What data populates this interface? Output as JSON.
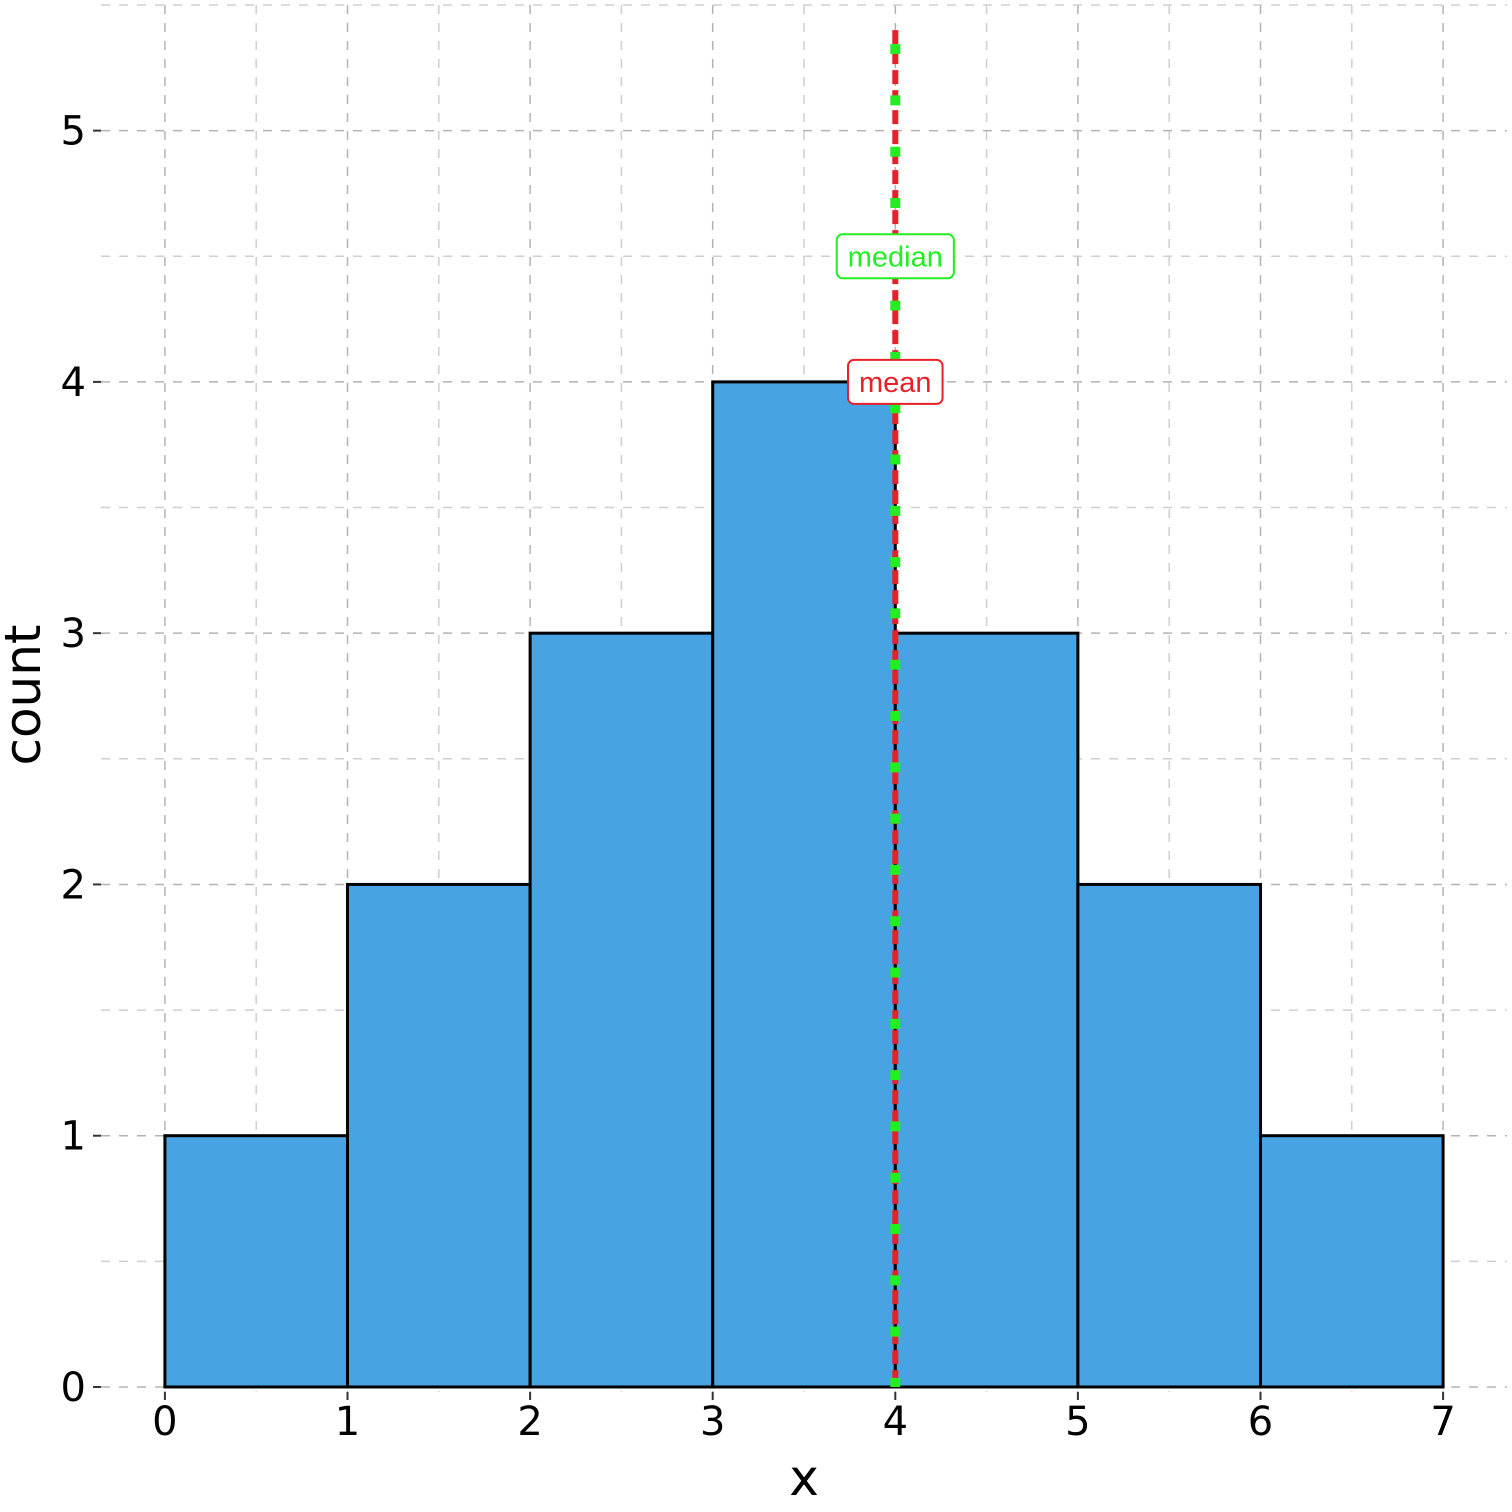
{
  "chart_data": {
    "type": "bar",
    "title": "",
    "xlabel": "x",
    "ylabel": "count",
    "bins": [
      {
        "x0": 0,
        "x1": 1,
        "count": 1
      },
      {
        "x0": 1,
        "x1": 2,
        "count": 2
      },
      {
        "x0": 2,
        "x1": 3,
        "count": 3
      },
      {
        "x0": 3,
        "x1": 4,
        "count": 4
      },
      {
        "x0": 4,
        "x1": 5,
        "count": 3
      },
      {
        "x0": 5,
        "x1": 6,
        "count": 2
      },
      {
        "x0": 6,
        "x1": 7,
        "count": 1
      }
    ],
    "xlim": [
      -0.35,
      7.35
    ],
    "ylim": [
      -0.02,
      5.5
    ],
    "xticks": [
      0,
      1,
      2,
      3,
      4,
      5,
      6,
      7
    ],
    "yticks": [
      0,
      1,
      2,
      3,
      4,
      5
    ],
    "grid": true,
    "bar_color": "#48A3E2",
    "bar_edge_color": "#000000",
    "reference_lines": [
      {
        "name": "mean",
        "x": 4,
        "color": "#E8202A",
        "label": "mean",
        "label_y": 4.0
      },
      {
        "name": "median",
        "x": 4,
        "color": "#22EE22",
        "label": "median",
        "label_y": 4.5
      }
    ]
  }
}
